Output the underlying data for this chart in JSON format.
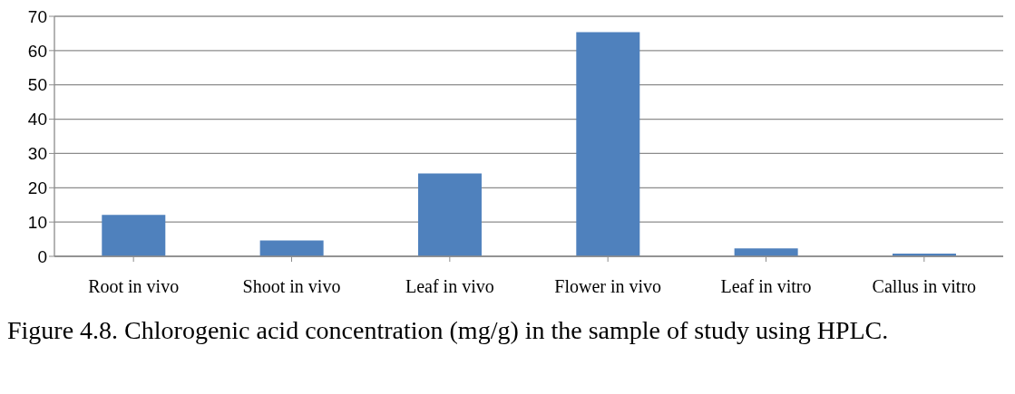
{
  "chart_data": {
    "type": "bar",
    "categories": [
      "Root in vivo",
      "Shoot in vivo",
      "Leaf in vivo",
      "Flower in vivo",
      "Leaf in vitro",
      "Callus in vitro"
    ],
    "values": [
      12.1,
      4.6,
      24.2,
      65.4,
      2.3,
      0.8
    ],
    "color": "#4f81bd",
    "ylim": [
      0,
      70
    ],
    "yticks": [
      0,
      10,
      20,
      30,
      40,
      50,
      60,
      70
    ],
    "grid": "y",
    "annotations": [
      "Figure 4.8. Chlorogenic acid concentration (mg/g) in the sample of study using HPLC."
    ]
  }
}
